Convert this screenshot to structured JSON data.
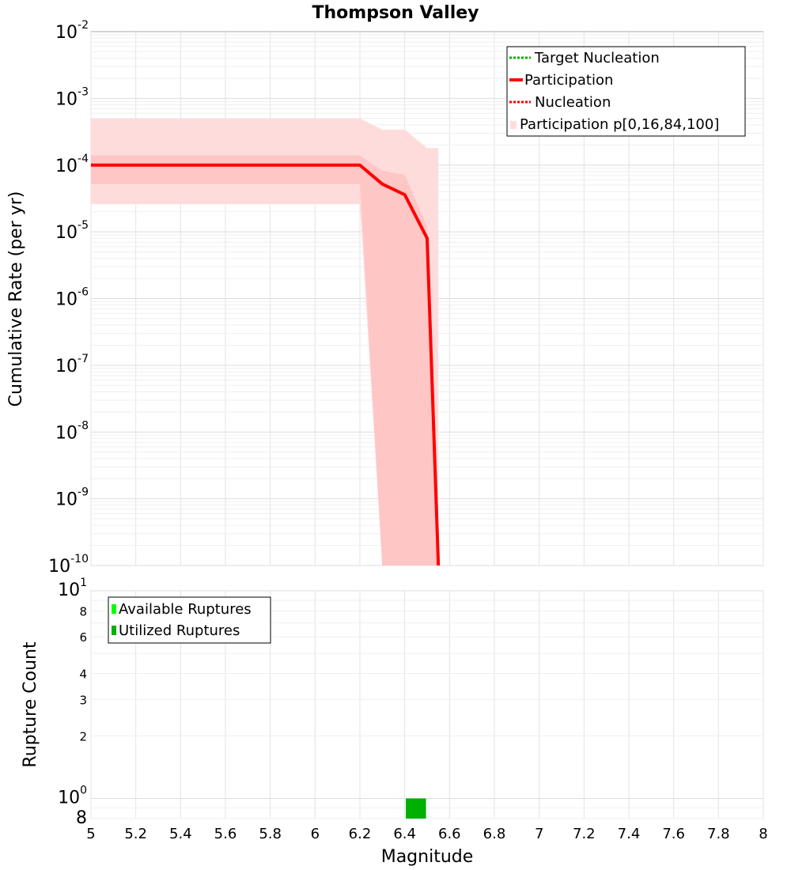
{
  "chart_data": [
    {
      "type": "line",
      "title": "Thompson Valley",
      "xlabel": "Magnitude",
      "ylabel": "Cumulative Rate (per yr)",
      "xlim": [
        5,
        8
      ],
      "ylim": [
        1e-10,
        0.01
      ],
      "y_scale": "log",
      "grid": true,
      "legend_placement": "top-right",
      "x_ticks": [
        "5",
        "5.2",
        "5.4",
        "5.6",
        "5.8",
        "6",
        "6.2",
        "6.4",
        "6.6",
        "6.8",
        "7",
        "7.2",
        "7.4",
        "7.6",
        "7.8",
        "8"
      ],
      "y_ticks": [
        {
          "base": "10",
          "exp": "-2"
        },
        {
          "base": "10",
          "exp": "-3"
        },
        {
          "base": "10",
          "exp": "-4"
        },
        {
          "base": "10",
          "exp": "-5"
        },
        {
          "base": "10",
          "exp": "-6"
        },
        {
          "base": "10",
          "exp": "-7"
        },
        {
          "base": "10",
          "exp": "-8"
        },
        {
          "base": "10",
          "exp": "-9"
        },
        {
          "base": "10",
          "exp": "-10"
        }
      ],
      "series": [
        {
          "name": "Target Nucleation",
          "color": "#00b000",
          "style": "dotted",
          "x": [],
          "y": []
        },
        {
          "name": "Participation",
          "color": "#ff0000",
          "style": "solid",
          "x": [
            5.0,
            5.1,
            5.2,
            5.3,
            5.4,
            5.5,
            5.6,
            5.7,
            5.8,
            5.9,
            6.0,
            6.1,
            6.2,
            6.3,
            6.4,
            6.5,
            6.55
          ],
          "y": [
            0.0001,
            0.0001,
            0.0001,
            0.0001,
            0.0001,
            0.0001,
            0.0001,
            0.0001,
            0.0001,
            0.0001,
            0.0001,
            0.0001,
            0.0001,
            5.2e-05,
            3.6e-05,
            8e-06,
            1e-10
          ]
        },
        {
          "name": "Nucleation",
          "color": "#ff0000",
          "style": "dotted",
          "x": [
            5.0,
            5.1,
            5.2,
            5.3,
            5.4,
            5.5,
            5.6,
            5.7,
            5.8,
            5.9,
            6.0,
            6.1,
            6.2,
            6.3,
            6.4,
            6.5,
            6.55
          ],
          "y": [
            0.0001,
            0.0001,
            0.0001,
            0.0001,
            0.0001,
            0.0001,
            0.0001,
            0.0001,
            0.0001,
            0.0001,
            0.0001,
            0.0001,
            0.0001,
            5.2e-05,
            3.6e-05,
            8e-06,
            1e-10
          ]
        }
      ],
      "bands": [
        {
          "name": "Participation p[0,16,84,100]",
          "color": "#ffdcdc",
          "x": [
            5.0,
            6.2,
            6.3,
            6.4,
            6.5,
            6.55
          ],
          "lower": [
            2.6e-05,
            2.6e-05,
            1e-10,
            1e-10,
            1e-10,
            1e-10
          ],
          "upper": [
            0.0005,
            0.0005,
            0.00034,
            0.00034,
            0.00018,
            0.00018
          ]
        },
        {
          "name": "",
          "color": "#ffc6c6",
          "x": [
            5.0,
            6.2,
            6.3,
            6.4,
            6.5,
            6.55
          ],
          "lower": [
            5.2e-05,
            5.2e-05,
            1e-10,
            1e-10,
            1e-10,
            1e-10
          ],
          "upper": [
            0.00014,
            0.00014,
            8.2e-05,
            7.2e-05,
            1.2e-05,
            1e-10
          ]
        }
      ],
      "legend": [
        {
          "label": "Target Nucleation",
          "color": "#00b000",
          "style": "dotted"
        },
        {
          "label": "Participation",
          "color": "#ff0000",
          "style": "solid"
        },
        {
          "label": "Nucleation",
          "color": "#ff0000",
          "style": "dotted"
        },
        {
          "label": "Participation p[0,16,84,100]",
          "color": "#ffdcdc",
          "style": "band"
        }
      ]
    },
    {
      "type": "bar",
      "xlabel": "Magnitude",
      "ylabel": "Rupture Count",
      "xlim": [
        5,
        8
      ],
      "ylim": [
        0.8,
        10
      ],
      "y_scale": "log",
      "grid": true,
      "legend_placement": "top-left",
      "y_ticks": [
        {
          "base": "10",
          "exp": "1"
        },
        {
          "base": "8",
          "exp": ""
        },
        {
          "base": "6",
          "exp": ""
        },
        {
          "base": "4",
          "exp": ""
        },
        {
          "base": "3",
          "exp": ""
        },
        {
          "base": "2",
          "exp": ""
        },
        {
          "base": "10",
          "exp": "0"
        },
        {
          "base": "8",
          "exp": ""
        }
      ],
      "series": [
        {
          "name": "Available Ruptures",
          "color": "#00ff00",
          "x": [],
          "values": []
        },
        {
          "name": "Utilized Ruptures",
          "color": "#00b000",
          "x": [
            6.45
          ],
          "values": [
            1
          ]
        }
      ],
      "bar_width": 0.09,
      "legend": [
        {
          "label": "Available Ruptures",
          "color": "#00ff00"
        },
        {
          "label": "Utilized Ruptures",
          "color": "#00b000"
        }
      ]
    }
  ]
}
